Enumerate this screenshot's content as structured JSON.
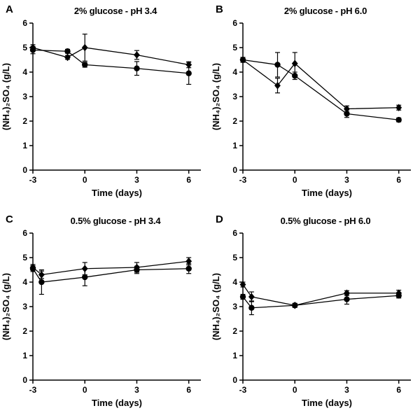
{
  "chart_data": [
    {
      "type": "line",
      "panel": "A",
      "title": "2% glucose - pH 3.4",
      "xlabel": "Time (days)",
      "ylabel": "(NH₄)₂SO₄ (g/L)",
      "xlim": [
        -3,
        6.7
      ],
      "ylim": [
        0,
        6
      ],
      "xticks": [
        -3,
        0,
        3,
        6
      ],
      "yticks": [
        0,
        1,
        2,
        3,
        4,
        5,
        6
      ],
      "grid": false,
      "legend": "none",
      "series": [
        {
          "name": "diamond-series",
          "marker": "diamond",
          "x": [
            -3,
            -1,
            0,
            3,
            6
          ],
          "y": [
            5.0,
            4.6,
            5.0,
            4.7,
            4.3
          ],
          "yerr": [
            0.12,
            0.08,
            0.55,
            0.18,
            0.12
          ]
        },
        {
          "name": "circle-series",
          "marker": "circle",
          "x": [
            -3,
            -1,
            0,
            3,
            6
          ],
          "y": [
            4.9,
            4.85,
            4.3,
            4.15,
            3.95
          ],
          "yerr": [
            0.15,
            0.08,
            0.1,
            0.28,
            0.45
          ]
        }
      ]
    },
    {
      "type": "line",
      "panel": "B",
      "title": "2% glucose - pH 6.0",
      "xlabel": "Time (days)",
      "ylabel": "(NH₄)₂SO₄ (g/L)",
      "xlim": [
        -3,
        6.7
      ],
      "ylim": [
        0,
        6
      ],
      "xticks": [
        -3,
        0,
        3,
        6
      ],
      "yticks": [
        0,
        1,
        2,
        3,
        4,
        5,
        6
      ],
      "grid": false,
      "legend": "none",
      "series": [
        {
          "name": "diamond-series",
          "marker": "diamond",
          "x": [
            -3,
            -1,
            0,
            3,
            6
          ],
          "y": [
            4.5,
            3.45,
            4.35,
            2.5,
            2.55
          ],
          "yerr": [
            0.1,
            0.3,
            0.45,
            0.12,
            0.1
          ]
        },
        {
          "name": "circle-series",
          "marker": "circle",
          "x": [
            -3,
            -1,
            0,
            3,
            6
          ],
          "y": [
            4.5,
            4.3,
            3.85,
            2.3,
            2.05
          ],
          "yerr": [
            0.1,
            0.5,
            0.15,
            0.15,
            0.08
          ]
        }
      ]
    },
    {
      "type": "line",
      "panel": "C",
      "title": "0.5% glucose - pH 3.4",
      "xlabel": "Time (days)",
      "ylabel": "(NH₄)₂SO₄ (g/L)",
      "xlim": [
        -3,
        6.7
      ],
      "ylim": [
        0,
        6
      ],
      "xticks": [
        -3,
        0,
        3,
        6
      ],
      "yticks": [
        0,
        1,
        2,
        3,
        4,
        5,
        6
      ],
      "grid": false,
      "legend": "none",
      "series": [
        {
          "name": "diamond-series",
          "marker": "diamond",
          "x": [
            -3,
            -2.5,
            0,
            3,
            6
          ],
          "y": [
            4.6,
            4.3,
            4.55,
            4.6,
            4.85
          ],
          "yerr": [
            0.12,
            0.15,
            0.25,
            0.2,
            0.15
          ]
        },
        {
          "name": "circle-series",
          "marker": "circle",
          "x": [
            -3,
            -2.5,
            0,
            3,
            6
          ],
          "y": [
            4.55,
            4.0,
            4.2,
            4.5,
            4.55
          ],
          "yerr": [
            0.12,
            0.5,
            0.35,
            0.15,
            0.2
          ]
        }
      ]
    },
    {
      "type": "line",
      "panel": "D",
      "title": "0.5% glucose - pH 6.0",
      "xlabel": "Time (days)",
      "ylabel": "(NH₄)₂SO₄ (g/L)",
      "xlim": [
        -3,
        6.7
      ],
      "ylim": [
        0,
        6
      ],
      "xticks": [
        -3,
        0,
        3,
        6
      ],
      "yticks": [
        0,
        1,
        2,
        3,
        4,
        5,
        6
      ],
      "grid": false,
      "legend": "none",
      "series": [
        {
          "name": "diamond-series",
          "marker": "diamond",
          "x": [
            -3,
            -2.5,
            0,
            3,
            6
          ],
          "y": [
            3.9,
            3.4,
            3.05,
            3.55,
            3.55
          ],
          "yerr": [
            0.1,
            0.2,
            0.08,
            0.1,
            0.12
          ]
        },
        {
          "name": "circle-series",
          "marker": "circle",
          "x": [
            -3,
            -2.5,
            0,
            3,
            6
          ],
          "y": [
            3.4,
            2.95,
            3.05,
            3.3,
            3.45
          ],
          "yerr": [
            0.1,
            0.28,
            0.08,
            0.2,
            0.1
          ]
        }
      ]
    }
  ]
}
